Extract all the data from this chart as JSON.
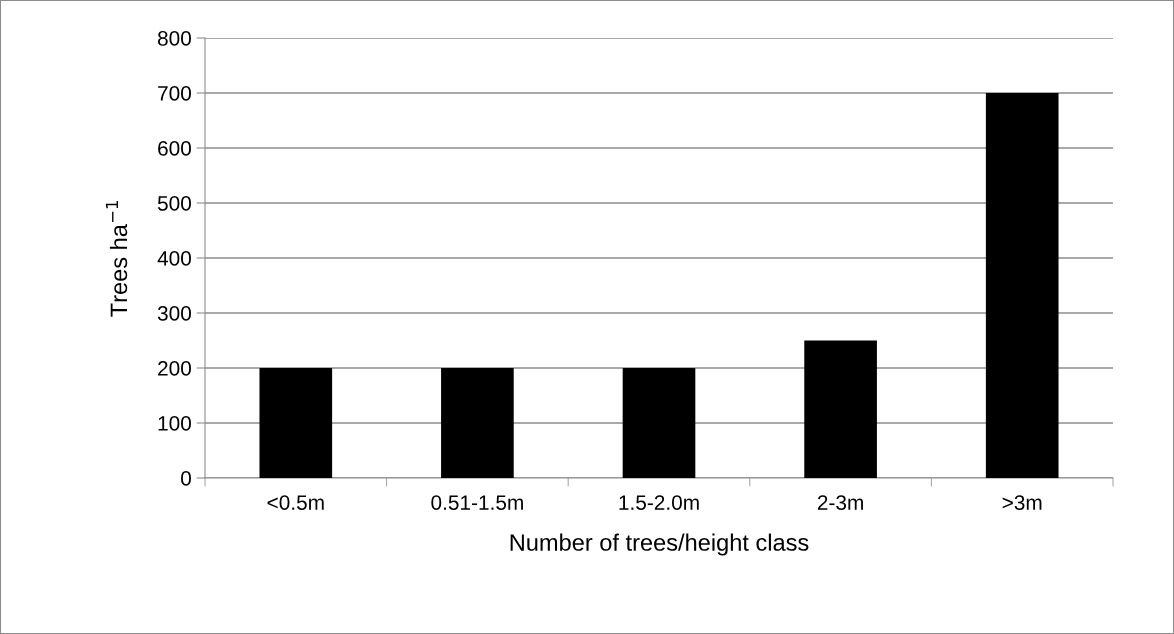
{
  "chart_data": {
    "type": "bar",
    "xlabel": "Number of trees/height class",
    "ylabel": "Trees ha$^{−1}$",
    "categories": [
      "<0.5m",
      "0.51-1.5m",
      "1.5-2.0m",
      "2-3m",
      ">3m"
    ],
    "values": [
      200,
      200,
      200,
      250,
      700
    ],
    "color": "#000000",
    "ylim": [
      0,
      800
    ],
    "yticks": [
      0,
      100,
      200,
      300,
      400,
      500,
      600,
      700,
      800
    ],
    "grid": "y"
  }
}
